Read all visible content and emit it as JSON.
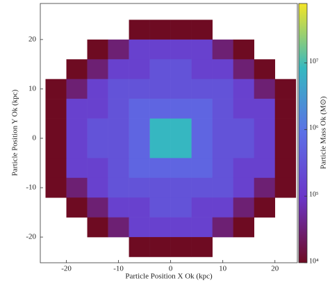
{
  "chart_data": {
    "type": "heatmap",
    "xlabel": "Particle Position X Ok (kpc)",
    "ylabel": "Particle Position Y Ok (kpc)",
    "colorbar_label": "Particle Mass Ok (M⊙)",
    "xlim": [
      -25,
      24.3
    ],
    "ylim": [
      -25.2,
      27.3
    ],
    "xticks": [
      -20,
      -10,
      0,
      10,
      20
    ],
    "yticks": [
      -20,
      -10,
      0,
      10,
      20
    ],
    "x_edges": [
      -24,
      -20,
      -16,
      -12,
      -8,
      -4,
      0,
      4,
      8,
      12,
      16,
      20,
      24
    ],
    "y_edges": [
      24,
      20,
      16,
      12,
      8,
      4,
      0,
      -4,
      -8,
      -12,
      -16,
      -20,
      -24
    ],
    "z": [
      [
        null,
        null,
        null,
        null,
        10000,
        10000,
        10000,
        10000,
        null,
        null,
        null,
        null
      ],
      [
        null,
        null,
        10000,
        30000,
        150000,
        150000,
        150000,
        150000,
        30000,
        10000,
        null,
        null
      ],
      [
        null,
        10000,
        30000,
        150000,
        150000,
        300000,
        300000,
        150000,
        150000,
        30000,
        10000,
        null
      ],
      [
        10000,
        30000,
        150000,
        300000,
        300000,
        300000,
        300000,
        300000,
        300000,
        150000,
        30000,
        10000
      ],
      [
        10000,
        150000,
        150000,
        300000,
        600000,
        600000,
        600000,
        600000,
        300000,
        150000,
        150000,
        10000
      ],
      [
        10000,
        150000,
        300000,
        300000,
        600000,
        8000000,
        8000000,
        600000,
        300000,
        300000,
        150000,
        10000
      ],
      [
        10000,
        150000,
        300000,
        300000,
        600000,
        8000000,
        8000000,
        600000,
        300000,
        300000,
        150000,
        10000
      ],
      [
        10000,
        150000,
        150000,
        300000,
        600000,
        600000,
        600000,
        600000,
        300000,
        150000,
        150000,
        10000
      ],
      [
        10000,
        30000,
        150000,
        300000,
        300000,
        300000,
        300000,
        300000,
        300000,
        150000,
        30000,
        10000
      ],
      [
        null,
        10000,
        30000,
        150000,
        150000,
        300000,
        300000,
        150000,
        150000,
        30000,
        10000,
        null
      ],
      [
        null,
        null,
        10000,
        30000,
        150000,
        150000,
        150000,
        150000,
        30000,
        10000,
        null,
        null
      ],
      [
        null,
        null,
        null,
        null,
        10000,
        10000,
        10000,
        10000,
        null,
        null,
        null,
        null
      ]
    ],
    "clim": [
      10000,
      78000000
    ],
    "color_scale": "log",
    "colormap": [
      "#6e0b22",
      "#6b35c8",
      "#5c6fe6",
      "#35b8c0",
      "#f4e526"
    ],
    "cticks": [
      {
        "value": 10000,
        "label": "10⁴"
      },
      {
        "value": 100000,
        "label": "10⁵"
      },
      {
        "value": 1000000,
        "label": "10⁶"
      },
      {
        "value": 10000000,
        "label": "10⁷"
      }
    ]
  }
}
